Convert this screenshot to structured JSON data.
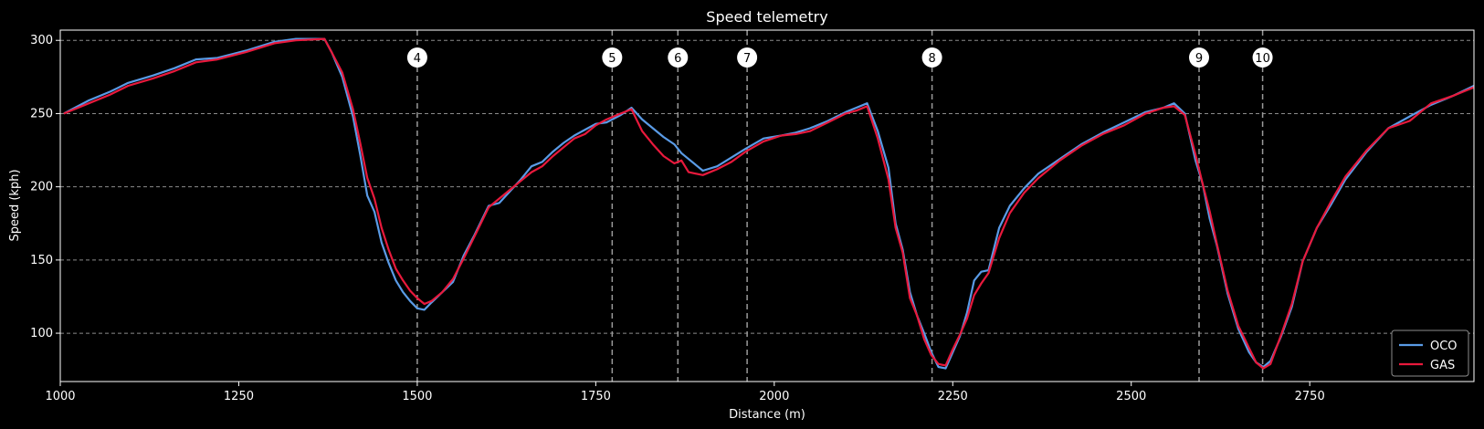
{
  "chart_data": {
    "type": "line",
    "title": "Speed telemetry",
    "xlabel": "Distance (m)",
    "ylabel": "Speed (kph)",
    "xlim": [
      1000,
      2980
    ],
    "ylim": [
      67,
      307
    ],
    "xticks": [
      1000,
      1250,
      1500,
      1750,
      2000,
      2250,
      2500,
      2750
    ],
    "yticks": [
      100,
      150,
      200,
      250,
      300
    ],
    "grid": true,
    "legend_position": "bottom-right",
    "corners": [
      {
        "label": "4",
        "x": 1500
      },
      {
        "label": "5",
        "x": 1773
      },
      {
        "label": "6",
        "x": 1865
      },
      {
        "label": "7",
        "x": 1962
      },
      {
        "label": "8",
        "x": 2221
      },
      {
        "label": "9",
        "x": 2595
      },
      {
        "label": "10",
        "x": 2684
      }
    ],
    "series": [
      {
        "name": "OCO",
        "color": "#5a9be6",
        "x": [
          1005,
          1040,
          1070,
          1095,
          1130,
          1160,
          1190,
          1220,
          1260,
          1300,
          1330,
          1370,
          1380,
          1395,
          1410,
          1420,
          1430,
          1440,
          1450,
          1460,
          1470,
          1480,
          1490,
          1500,
          1510,
          1520,
          1535,
          1550,
          1565,
          1580,
          1600,
          1615,
          1630,
          1645,
          1660,
          1675,
          1690,
          1705,
          1720,
          1735,
          1750,
          1765,
          1785,
          1800,
          1815,
          1830,
          1845,
          1860,
          1870,
          1880,
          1900,
          1920,
          1940,
          1960,
          1985,
          2010,
          2030,
          2050,
          2075,
          2100,
          2115,
          2130,
          2145,
          2160,
          2170,
          2180,
          2190,
          2200,
          2210,
          2220,
          2230,
          2240,
          2250,
          2260,
          2270,
          2280,
          2290,
          2300,
          2315,
          2330,
          2350,
          2370,
          2400,
          2430,
          2460,
          2490,
          2520,
          2545,
          2560,
          2575,
          2590,
          2600,
          2610,
          2620,
          2635,
          2650,
          2665,
          2675,
          2685,
          2695,
          2710,
          2725,
          2740,
          2760,
          2780,
          2800,
          2830,
          2860,
          2890,
          2920,
          2950,
          2980
        ],
        "y": [
          250,
          259,
          265,
          271,
          276,
          281,
          287,
          288,
          293,
          299,
          301,
          301,
          292,
          275,
          248,
          222,
          194,
          183,
          162,
          148,
          136,
          128,
          122,
          117,
          116,
          121,
          128,
          135,
          153,
          167,
          187,
          189,
          197,
          205,
          214,
          217,
          224,
          230,
          235,
          239,
          243,
          244,
          249,
          254,
          246,
          240,
          234,
          229,
          223,
          219,
          211,
          214,
          220,
          226,
          233,
          235,
          237,
          240,
          245,
          251,
          254,
          257,
          238,
          213,
          175,
          157,
          128,
          112,
          100,
          87,
          77,
          76,
          87,
          98,
          114,
          136,
          142,
          143,
          172,
          187,
          199,
          209,
          219,
          229,
          237,
          244,
          251,
          254,
          257,
          250,
          218,
          202,
          178,
          160,
          127,
          103,
          87,
          80,
          77,
          81,
          98,
          118,
          149,
          172,
          188,
          205,
          224,
          240,
          248,
          256,
          262,
          269
        ]
      },
      {
        "name": "GAS",
        "color": "#e8193c",
        "x": [
          1005,
          1040,
          1070,
          1095,
          1130,
          1160,
          1190,
          1220,
          1260,
          1300,
          1330,
          1370,
          1380,
          1395,
          1410,
          1420,
          1430,
          1440,
          1450,
          1460,
          1470,
          1480,
          1490,
          1500,
          1510,
          1520,
          1535,
          1550,
          1565,
          1580,
          1600,
          1615,
          1630,
          1645,
          1660,
          1675,
          1690,
          1705,
          1720,
          1735,
          1750,
          1765,
          1785,
          1800,
          1815,
          1830,
          1845,
          1860,
          1870,
          1880,
          1900,
          1920,
          1940,
          1960,
          1985,
          2010,
          2030,
          2050,
          2075,
          2100,
          2115,
          2130,
          2145,
          2160,
          2170,
          2180,
          2190,
          2200,
          2210,
          2220,
          2230,
          2240,
          2250,
          2260,
          2270,
          2280,
          2290,
          2300,
          2315,
          2330,
          2350,
          2370,
          2400,
          2430,
          2460,
          2490,
          2520,
          2545,
          2560,
          2575,
          2590,
          2600,
          2610,
          2620,
          2635,
          2650,
          2665,
          2675,
          2685,
          2695,
          2710,
          2725,
          2740,
          2760,
          2780,
          2800,
          2830,
          2860,
          2890,
          2920,
          2950,
          2980
        ],
        "y": [
          250,
          257,
          263,
          269,
          274,
          279,
          285,
          287,
          292,
          298,
          300,
          301,
          292,
          278,
          253,
          230,
          206,
          192,
          172,
          157,
          144,
          136,
          129,
          124,
          120,
          122,
          128,
          137,
          151,
          166,
          186,
          192,
          198,
          204,
          210,
          214,
          221,
          227,
          233,
          236,
          242,
          246,
          250,
          253,
          238,
          229,
          221,
          216,
          218,
          210,
          208,
          212,
          217,
          224,
          231,
          235,
          236,
          238,
          244,
          250,
          252,
          255,
          233,
          205,
          172,
          155,
          124,
          112,
          96,
          85,
          79,
          78,
          89,
          99,
          110,
          126,
          134,
          141,
          165,
          182,
          196,
          206,
          218,
          228,
          236,
          242,
          250,
          254,
          255,
          249,
          222,
          202,
          183,
          161,
          129,
          105,
          90,
          80,
          76,
          79,
          99,
          120,
          149,
          172,
          190,
          207,
          225,
          240,
          245,
          257,
          262,
          268
        ]
      }
    ]
  }
}
